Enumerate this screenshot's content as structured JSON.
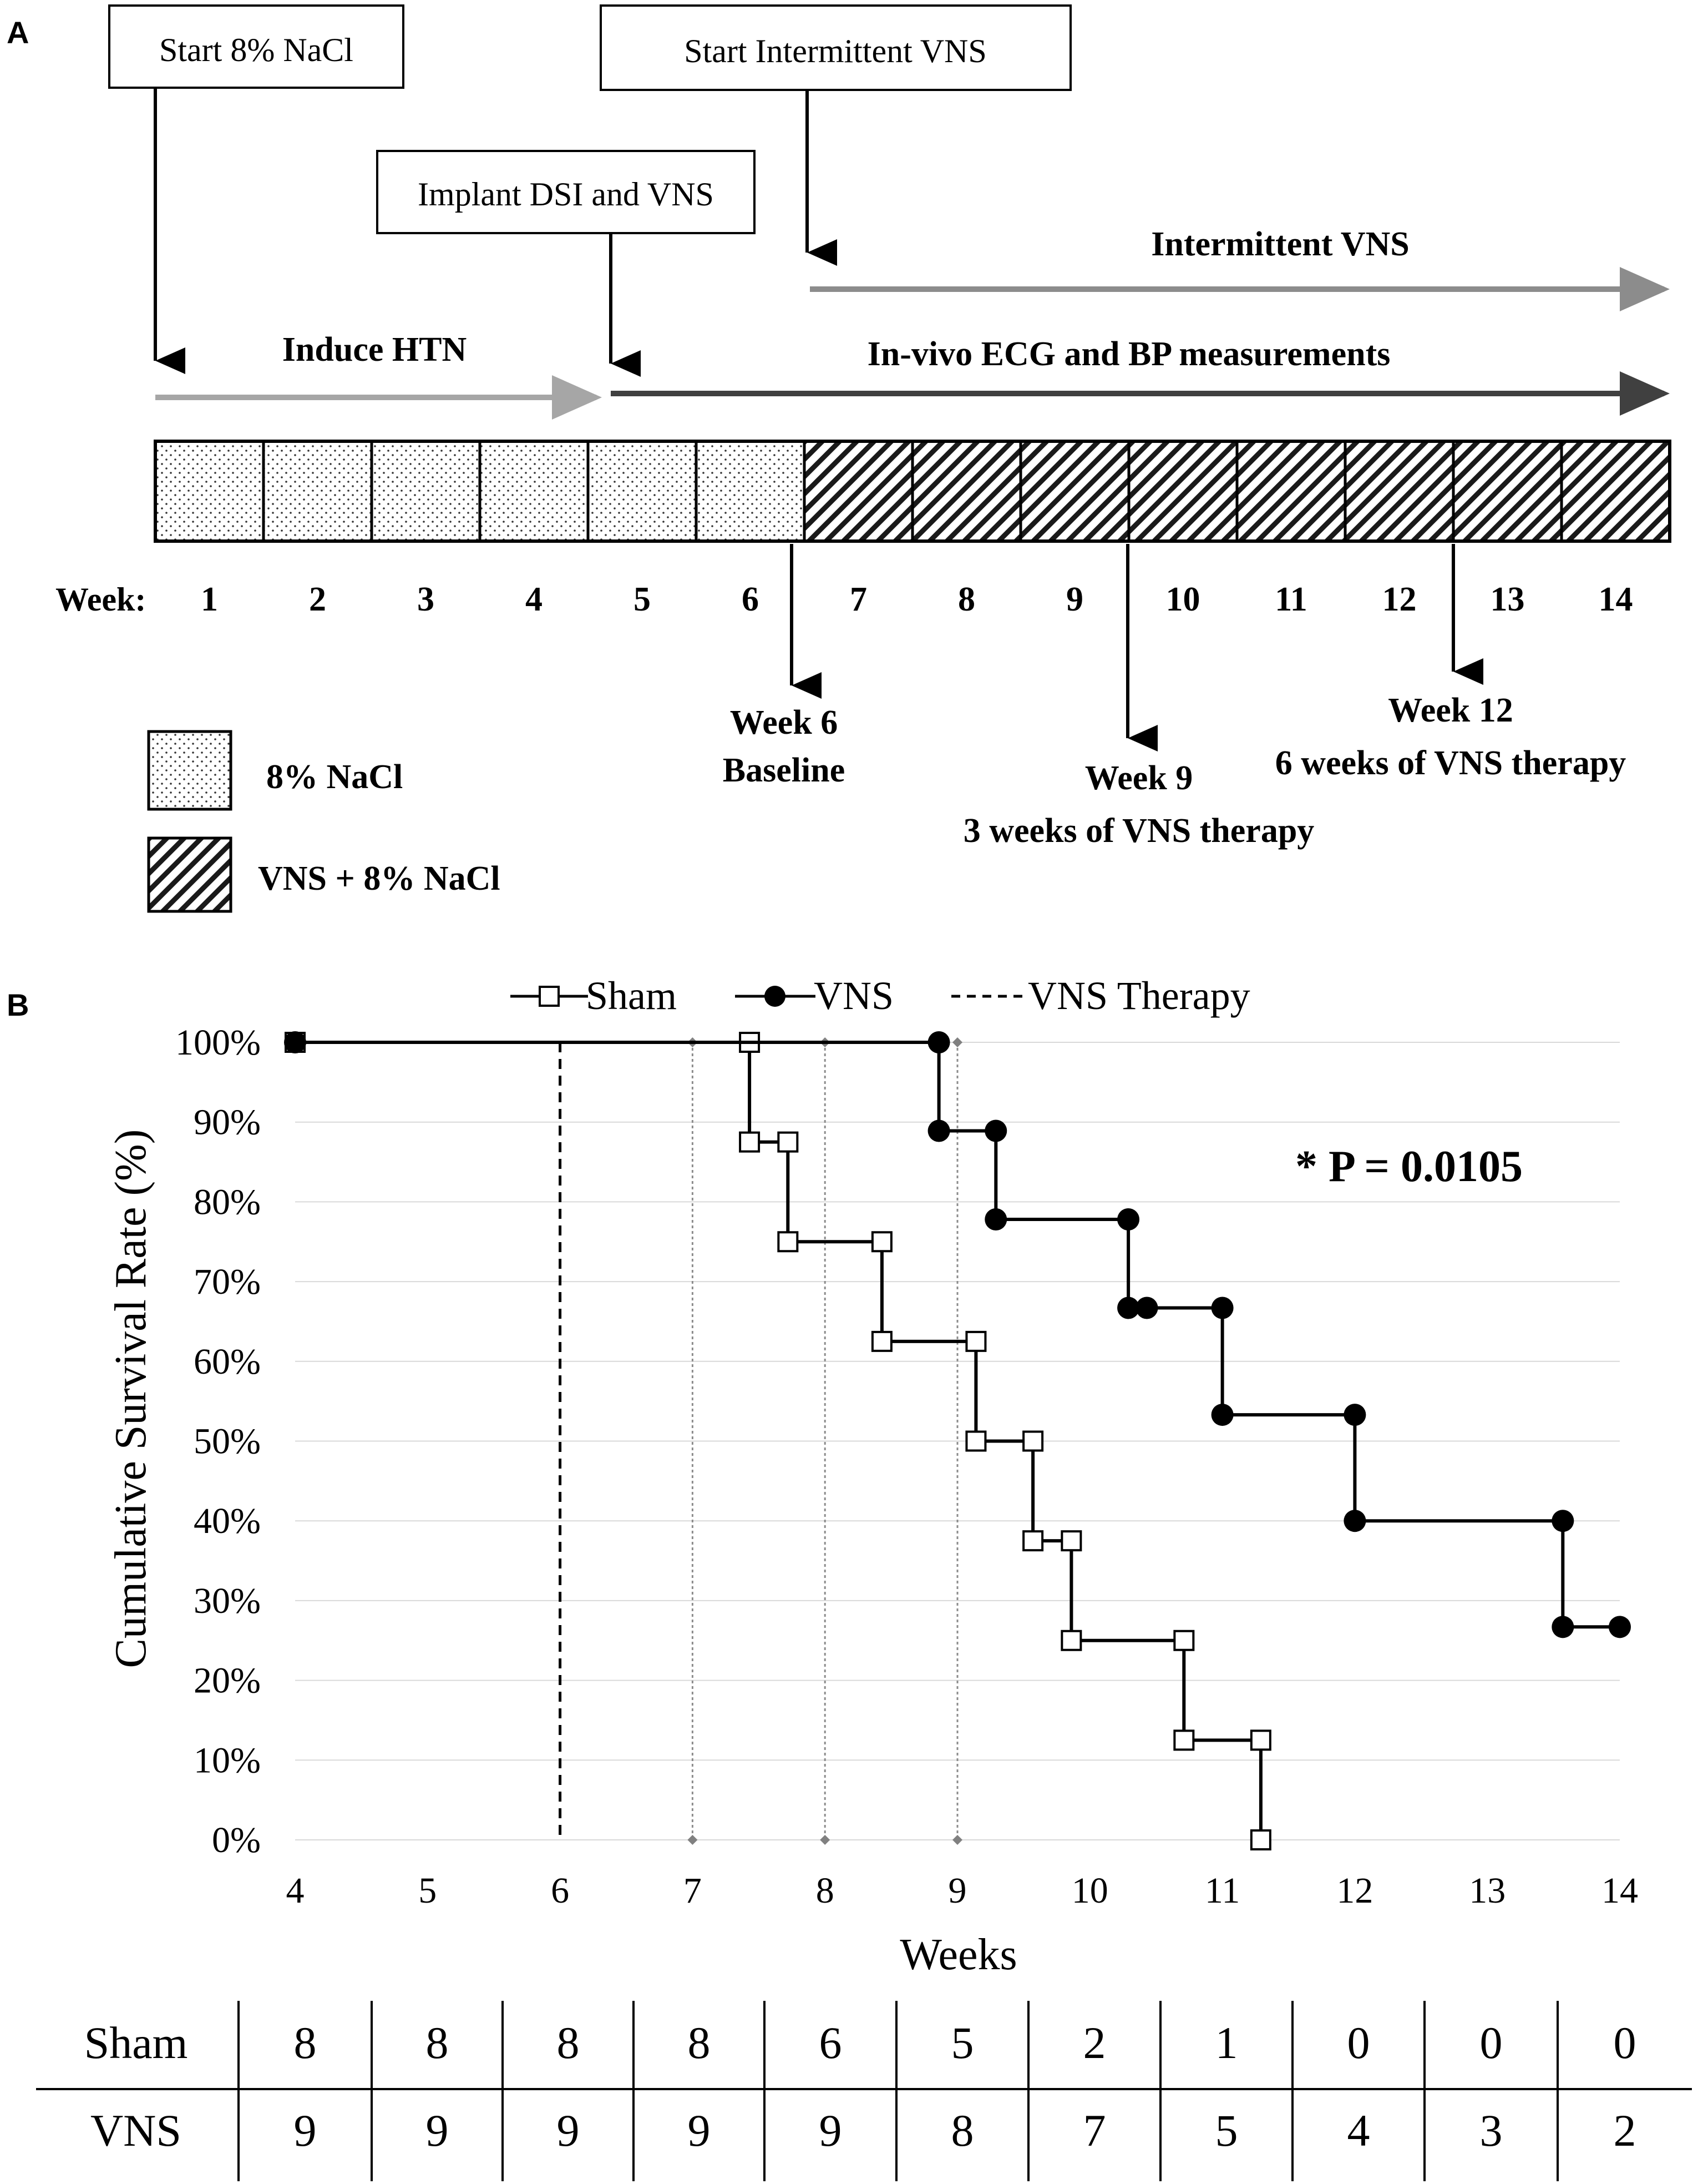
{
  "panel_labels": {
    "a": "A",
    "b": "B"
  },
  "timeline": {
    "start_nacl_label": "Start 8% NaCl",
    "start_vns_label": "Start Intermittent VNS",
    "implant_label": "Implant DSI and VNS",
    "intermittent_vns_label": "Intermittent VNS",
    "induce_htn_label": "Induce HTN",
    "invivo_label": "In-vivo ECG and BP measurements",
    "week_prefix": "Week:",
    "weeks": [
      "1",
      "2",
      "3",
      "4",
      "5",
      "6",
      "7",
      "8",
      "9",
      "10",
      "11",
      "12",
      "13",
      "14"
    ],
    "dotted_weeks": 6,
    "hatched_weeks": 8,
    "markers": [
      {
        "line1": "Week 6",
        "line2": "Baseline"
      },
      {
        "line1": "Week 9",
        "line2": "3 weeks of VNS therapy"
      },
      {
        "line1": "Week 12",
        "line2": "6 weeks of VNS therapy"
      }
    ],
    "legend": {
      "dotted": "8% NaCl",
      "hatched": "VNS + 8% NaCl"
    },
    "colors": {
      "arrow_light": "#a6a6a6",
      "arrow_mid": "#8c8c8c",
      "arrow_dark": "#404040"
    }
  },
  "chart_data": {
    "type": "line",
    "xlabel": "Weeks",
    "ylabel": "Cumulative Survival Rate (%)",
    "xlim": [
      4,
      14
    ],
    "ylim": [
      0,
      100
    ],
    "x_ticks": [
      "4",
      "5",
      "6",
      "7",
      "8",
      "9",
      "10",
      "11",
      "12",
      "13",
      "14"
    ],
    "y_ticks": [
      "0%",
      "10%",
      "20%",
      "30%",
      "40%",
      "50%",
      "60%",
      "70%",
      "80%",
      "90%",
      "100%"
    ],
    "annotation": "* P = 0.0105",
    "vns_therapy_start": 6,
    "dotted_reference_weeks": [
      7,
      8,
      9
    ],
    "legend": [
      "Sham",
      "VNS",
      "VNS Therapy"
    ],
    "series": [
      {
        "name": "Sham",
        "marker": "open-square",
        "points": [
          [
            4,
            100
          ],
          [
            7.43,
            100
          ],
          [
            7.43,
            87.5
          ],
          [
            7.72,
            87.5
          ],
          [
            7.72,
            75
          ],
          [
            8.43,
            75
          ],
          [
            8.43,
            62.5
          ],
          [
            9.14,
            62.5
          ],
          [
            9.14,
            50
          ],
          [
            9.57,
            50
          ],
          [
            9.57,
            37.5
          ],
          [
            9.86,
            37.5
          ],
          [
            9.86,
            25
          ],
          [
            10.71,
            25
          ],
          [
            10.71,
            12.5
          ],
          [
            11.29,
            12.5
          ],
          [
            11.29,
            0
          ]
        ]
      },
      {
        "name": "VNS",
        "marker": "filled-circle",
        "points": [
          [
            4,
            100
          ],
          [
            8.86,
            100
          ],
          [
            8.86,
            88.9
          ],
          [
            9.29,
            88.9
          ],
          [
            9.29,
            77.8
          ],
          [
            10.29,
            77.8
          ],
          [
            10.29,
            66.7
          ],
          [
            10.43,
            66.7
          ],
          [
            11.0,
            66.7
          ],
          [
            11.0,
            53.3
          ],
          [
            12.0,
            53.3
          ],
          [
            12.0,
            40
          ],
          [
            13.57,
            40
          ],
          [
            13.57,
            26.7
          ],
          [
            14.0,
            26.7
          ]
        ]
      }
    ]
  },
  "risk_table": {
    "rows": [
      {
        "label": "Sham",
        "values": [
          "8",
          "8",
          "8",
          "8",
          "6",
          "5",
          "2",
          "1",
          "0",
          "0",
          "0"
        ]
      },
      {
        "label": "VNS",
        "values": [
          "9",
          "9",
          "9",
          "9",
          "9",
          "8",
          "7",
          "5",
          "4",
          "3",
          "2"
        ]
      }
    ]
  }
}
